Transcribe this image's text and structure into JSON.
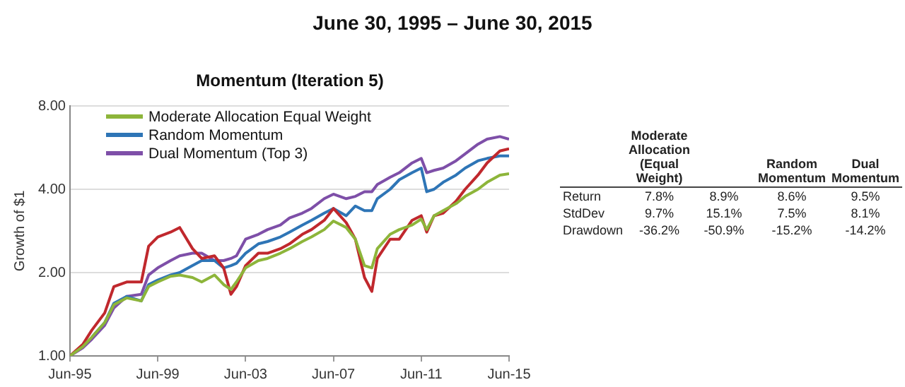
{
  "chart_data": {
    "type": "line",
    "title": "June 30, 1995 – June 30, 2015",
    "subtitle": "Momentum (Iteration 5)",
    "ylabel": "Growth of $1",
    "x": [
      "1995-06",
      "1996-01",
      "1996-06",
      "1997-01",
      "1997-06",
      "1998-01",
      "1998-09",
      "1999-01",
      "1999-06",
      "2000-01",
      "2000-06",
      "2001-01",
      "2001-06",
      "2002-01",
      "2002-06",
      "2002-10",
      "2003-01",
      "2003-06",
      "2004-01",
      "2004-06",
      "2005-01",
      "2005-06",
      "2006-01",
      "2006-06",
      "2007-01",
      "2007-06",
      "2008-01",
      "2008-06",
      "2008-11",
      "2009-03",
      "2009-06",
      "2010-01",
      "2010-06",
      "2011-01",
      "2011-06",
      "2011-09",
      "2012-01",
      "2012-06",
      "2013-01",
      "2013-06",
      "2014-01",
      "2014-06",
      "2015-01",
      "2015-06"
    ],
    "series": [
      {
        "name": "Moderate Allocation Equal Weight",
        "color": "#8db53a",
        "values": [
          1.0,
          1.08,
          1.17,
          1.32,
          1.53,
          1.62,
          1.58,
          1.78,
          1.85,
          1.94,
          1.96,
          1.92,
          1.85,
          1.96,
          1.81,
          1.74,
          1.85,
          2.08,
          2.21,
          2.25,
          2.35,
          2.44,
          2.59,
          2.69,
          2.86,
          3.07,
          2.91,
          2.64,
          2.12,
          2.08,
          2.44,
          2.75,
          2.86,
          2.97,
          3.12,
          2.86,
          3.21,
          3.35,
          3.55,
          3.77,
          4.0,
          4.24,
          4.5,
          4.55
        ]
      },
      {
        "color": "#c0282d",
        "values": [
          1.0,
          1.1,
          1.24,
          1.43,
          1.78,
          1.85,
          1.85,
          2.49,
          2.69,
          2.8,
          2.91,
          2.44,
          2.25,
          2.3,
          2.08,
          1.67,
          1.78,
          2.12,
          2.35,
          2.35,
          2.44,
          2.54,
          2.75,
          2.86,
          3.09,
          3.41,
          3.03,
          2.64,
          1.92,
          1.71,
          2.25,
          2.64,
          2.64,
          3.09,
          3.21,
          2.8,
          3.21,
          3.28,
          3.62,
          4.0,
          4.5,
          4.98,
          5.5,
          5.6
        ]
      },
      {
        "name": "Random Momentum",
        "color": "#2e75b6",
        "values": [
          null,
          null,
          1.17,
          1.32,
          1.55,
          1.64,
          1.58,
          1.81,
          1.88,
          1.96,
          2.0,
          2.12,
          2.21,
          2.21,
          2.08,
          2.12,
          2.16,
          2.35,
          2.54,
          2.59,
          2.69,
          2.8,
          2.97,
          3.09,
          3.28,
          3.41,
          3.21,
          3.48,
          3.35,
          3.35,
          3.7,
          4.0,
          4.33,
          4.59,
          4.77,
          3.92,
          4.0,
          4.24,
          4.5,
          4.77,
          5.07,
          5.17,
          5.28,
          5.28
        ]
      },
      {
        "name": "Dual Momentum (Top 3)",
        "color": "#7e4fa8",
        "values": [
          1.0,
          1.07,
          1.15,
          1.29,
          1.49,
          1.64,
          1.67,
          1.96,
          2.08,
          2.21,
          2.3,
          2.35,
          2.35,
          2.21,
          2.21,
          2.25,
          2.3,
          2.64,
          2.75,
          2.86,
          2.97,
          3.15,
          3.28,
          3.41,
          3.7,
          3.84,
          3.7,
          3.77,
          3.92,
          3.92,
          4.16,
          4.42,
          4.59,
          4.98,
          5.17,
          4.59,
          4.68,
          4.77,
          5.07,
          5.37,
          5.82,
          6.07,
          6.2,
          6.07
        ]
      }
    ],
    "xlim": [
      "1995-06",
      "2015-06"
    ],
    "xticks": [
      {
        "value": "1995-06",
        "label": "Jun-95"
      },
      {
        "value": "1999-06",
        "label": "Jun-99"
      },
      {
        "value": "2003-06",
        "label": "Jun-03"
      },
      {
        "value": "2007-06",
        "label": "Jun-07"
      },
      {
        "value": "2011-06",
        "label": "Jun-11"
      },
      {
        "value": "2015-06",
        "label": "Jun-15"
      }
    ],
    "ylim": [
      1,
      8
    ],
    "yticks": [
      {
        "value": 1,
        "label": "1.00"
      },
      {
        "value": 2,
        "label": "2.00"
      },
      {
        "value": 4,
        "label": "4.00"
      },
      {
        "value": 8,
        "label": "8.00"
      }
    ],
    "log": "y",
    "grid": "y",
    "legend": "top left",
    "marker": "none",
    "line_style": "solid",
    "annotations": [
      "Moderate Allocation (Equal Weight)",
      null,
      "Random Momentum",
      "Dual Momentum",
      "Return",
      "7.8%",
      "8.9%",
      "8.6%",
      "9.5%",
      "StdDev",
      "9.7%",
      "15.1%",
      "7.5%",
      "8.1%",
      "Drawdown",
      "-36.2%",
      "-50.9%",
      "-15.2%",
      "-14.2%"
    ]
  }
}
